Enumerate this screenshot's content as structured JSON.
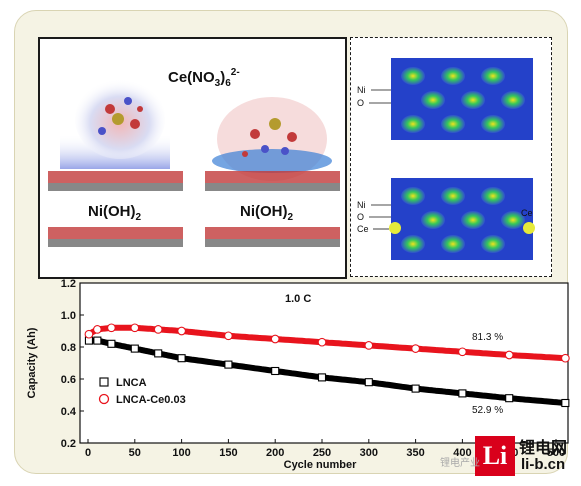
{
  "figure": {
    "left_panel": {
      "ion_label": "Ce(NO",
      "ion_sub_3": "3",
      "ion_paren": ")",
      "ion_sub_6": "6",
      "ion_sup": "2-",
      "substrate_left": "Ni(OH)",
      "substrate_left_sub": "2",
      "substrate_right": "Ni(OH)",
      "substrate_right_sub": "2"
    },
    "right_panel": {
      "top_labels": [
        "Ni",
        "O"
      ],
      "bottom_labels": [
        "Ni",
        "O",
        "Ce"
      ],
      "bottom_right_label": "Ce"
    }
  },
  "chart_data": {
    "type": "scatter",
    "title": "1.0 C",
    "xlabel": "Cycle number",
    "ylabel": "Capacity (Ah)",
    "xlim": [
      0,
      500
    ],
    "ylim": [
      0.2,
      1.2
    ],
    "xticks": [
      "0",
      "50",
      "100",
      "150",
      "200",
      "250",
      "300",
      "350",
      "400",
      "450",
      "500"
    ],
    "yticks": [
      "0.2",
      "0.4",
      "0.6",
      "0.8",
      "1.0",
      "1.2"
    ],
    "legend": [
      "LNCA",
      "LNCA-Ce0.03"
    ],
    "legend_position": "lower-left",
    "series": [
      {
        "name": "LNCA",
        "color": "#000000",
        "marker": "square",
        "x": [
          1,
          10,
          25,
          50,
          75,
          100,
          150,
          200,
          250,
          300,
          350,
          400,
          450,
          510
        ],
        "y": [
          0.84,
          0.84,
          0.82,
          0.79,
          0.76,
          0.73,
          0.69,
          0.65,
          0.61,
          0.58,
          0.54,
          0.51,
          0.48,
          0.45
        ]
      },
      {
        "name": "LNCA-Ce0.03",
        "color": "#e8141d",
        "marker": "circle",
        "x": [
          1,
          10,
          25,
          50,
          75,
          100,
          150,
          200,
          250,
          300,
          350,
          400,
          450,
          510
        ],
        "y": [
          0.88,
          0.91,
          0.92,
          0.92,
          0.91,
          0.9,
          0.87,
          0.85,
          0.83,
          0.81,
          0.79,
          0.77,
          0.75,
          0.73
        ]
      }
    ],
    "annotations": [
      "81.3 %",
      "52.9 %"
    ]
  },
  "logo": {
    "mark": "Li",
    "cn_text": "锂电网",
    "url": "li-b.cn"
  },
  "watermark": "锂电产业"
}
